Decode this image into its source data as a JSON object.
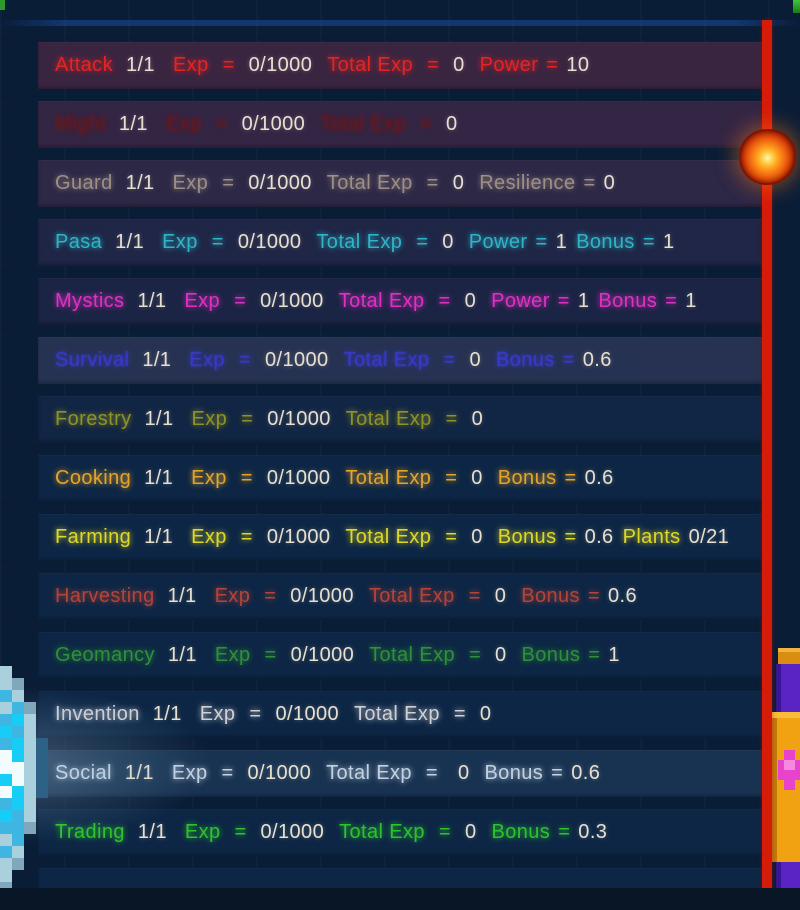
{
  "colors": {
    "background": "#0a1d37",
    "row_band": "#0d2645",
    "value_text": "#e7e0d1",
    "scrollbar_red": "#d51c08",
    "fireball_core": "#fff6c2",
    "crystal_blue": "#3fb6e2",
    "banner_purple": "#5a23c4",
    "banner_gold": "#f0a212",
    "banner_pink": "#e743cd"
  },
  "labels": {
    "eq": "="
  },
  "skills": [
    {
      "name": "Attack",
      "color": "#e32424",
      "tint": "rgba(112,36,60,0.45)",
      "blur": "",
      "level": "1/1",
      "exp_label": "Exp",
      "exp": "0/1000",
      "total_label": "Total Exp",
      "total": "0",
      "extras": [
        {
          "label": "Power",
          "eq": "=",
          "value": "10"
        }
      ]
    },
    {
      "name": "Might",
      "color": "#6e1516",
      "tint": "rgba(104,36,66,0.42)",
      "blur": "strong",
      "level": "1/1",
      "exp_label": "Exp",
      "exp": "0/1000",
      "total_label": "Total Exp",
      "total": "0",
      "extras": []
    },
    {
      "name": "Guard",
      "color": "#9d8f85",
      "tint": "rgba(96,42,72,0.38)",
      "blur": "",
      "level": "1/1",
      "exp_label": "Exp",
      "exp": "0/1000",
      "total_label": "Total Exp",
      "total": "0",
      "extras": [
        {
          "label": "Resilience",
          "eq": "=",
          "value": "0"
        }
      ]
    },
    {
      "name": "Pasa",
      "color": "#2fb4c6",
      "tint": "rgba(72,36,72,0.30)",
      "blur": "",
      "level": "1/1",
      "exp_label": "Exp",
      "exp": "0/1000",
      "total_label": "Total Exp",
      "total": "0",
      "extras": [
        {
          "label": "Power",
          "eq": "=",
          "value": "1"
        },
        {
          "label": "Bonus",
          "eq": "=",
          "value": "1"
        }
      ]
    },
    {
      "name": "Mystics",
      "color": "#de31c4",
      "tint": "rgba(62,30,66,0.28)",
      "blur": "",
      "level": "1/1",
      "exp_label": "Exp",
      "exp": "0/1000",
      "total_label": "Total Exp",
      "total": "0",
      "extras": [
        {
          "label": "Power",
          "eq": "=",
          "value": "1"
        },
        {
          "label": "Bonus",
          "eq": "=",
          "value": "1"
        }
      ]
    },
    {
      "name": "Survival",
      "color": "#3b3bd8",
      "tint": "rgba(98,78,112,0.30)",
      "blur": "soft",
      "level": "1/1",
      "exp_label": "Exp",
      "exp": "0/1000",
      "total_label": "Total Exp",
      "total": "0",
      "extras": [
        {
          "label": "Bonus",
          "eq": "=",
          "value": "0.6"
        }
      ]
    },
    {
      "name": "Forestry",
      "color": "#8f9226",
      "tint": "rgba(42,32,62,0.14)",
      "blur": "",
      "level": "1/1",
      "exp_label": "Exp",
      "exp": "0/1000",
      "total_label": "Total Exp",
      "total": "0",
      "extras": []
    },
    {
      "name": "Cooking",
      "color": "#e2a42b",
      "tint": "",
      "blur": "",
      "level": "1/1",
      "exp_label": "Exp",
      "exp": "0/1000",
      "total_label": "Total Exp",
      "total": "0",
      "extras": [
        {
          "label": "Bonus",
          "eq": "=",
          "value": "0.6"
        }
      ]
    },
    {
      "name": "Farming",
      "color": "#ddd82a",
      "tint": "",
      "blur": "",
      "level": "1/1",
      "exp_label": "Exp",
      "exp": "0/1000",
      "total_label": "Total Exp",
      "total": "0",
      "extras": [
        {
          "label": "Bonus",
          "eq": "=",
          "value": "0.6"
        },
        {
          "label": "Plants",
          "eq": "",
          "value": "0/21"
        }
      ]
    },
    {
      "name": "Harvesting",
      "color": "#b24438",
      "tint": "",
      "blur": "",
      "level": "1/1",
      "exp_label": "Exp",
      "exp": "0/1000",
      "total_label": "Total Exp",
      "total": "0",
      "extras": [
        {
          "label": "Bonus",
          "eq": "=",
          "value": "0.6"
        }
      ]
    },
    {
      "name": "Geomancy",
      "color": "#2f8f3a",
      "tint": "",
      "blur": "",
      "level": "1/1",
      "exp_label": "Exp",
      "exp": "0/1000",
      "total_label": "Total Exp",
      "total": "0",
      "extras": [
        {
          "label": "Bonus",
          "eq": "=",
          "value": "1"
        }
      ]
    },
    {
      "name": "Invention",
      "color": "#cfcfd4",
      "tint": "",
      "blur": "",
      "level": "1/1",
      "exp_label": "Exp",
      "exp": "0/1000",
      "total_label": "Total Exp",
      "total": "0",
      "extras": []
    },
    {
      "name": "Social",
      "color": "#c3d2e2",
      "tint": "rgba(120,160,190,0.10)",
      "blur": "",
      "level": "1/1",
      "exp_label": "Exp",
      "exp": "0/1000",
      "total_label": "Total Exp",
      "total": " 0",
      "extras": [
        {
          "label": "Bonus",
          "eq": "=",
          "value": "0.6"
        }
      ]
    },
    {
      "name": "Trading",
      "color": "#2cc32c",
      "tint": "",
      "blur": "",
      "level": "1/1",
      "exp_label": "Exp",
      "exp": "0/1000",
      "total_label": "Total Exp",
      "total": "0",
      "extras": [
        {
          "label": "Bonus",
          "eq": "=",
          "value": "0.3"
        }
      ]
    }
  ],
  "decorations": {
    "scroll_handle": "fireball-orb",
    "bottom_left": "blue-crystal",
    "bottom_right": "purple-gold-banner"
  }
}
